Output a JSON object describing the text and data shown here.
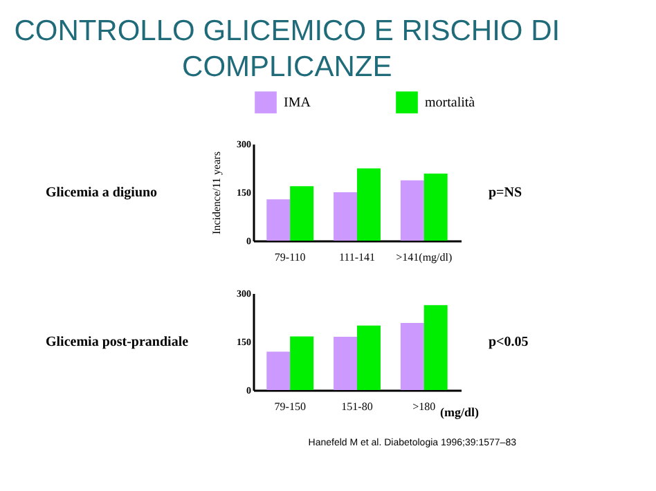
{
  "chart_data": [
    {
      "type": "bar",
      "title": "CONTROLLO GLICEMICO E RISCHIO DI COMPLICANZE",
      "ylabel": "Incidence/11 years",
      "categories": [
        "79-110",
        "111-141",
        ">141(mg/dl)"
      ],
      "series": [
        {
          "name": "IMA",
          "color": "#cc99ff",
          "values": [
            128,
            150,
            187
          ]
        },
        {
          "name": "mortalità",
          "color": "#00ee00",
          "values": [
            169,
            224,
            208
          ]
        }
      ],
      "ylim": [
        0,
        300
      ],
      "yticks": [
        0,
        150,
        300
      ],
      "grid": false,
      "legend": "top",
      "annotations": [
        "Glicemia a digiuno",
        "p=NS"
      ]
    },
    {
      "type": "bar",
      "categories": [
        "79-150",
        "151-80",
        ">180"
      ],
      "series": [
        {
          "name": "IMA",
          "color": "#cc99ff",
          "values": [
            119,
            165,
            208
          ]
        },
        {
          "name": "mortalità",
          "color": "#00ee00",
          "values": [
            166,
            200,
            263
          ]
        }
      ],
      "ylim": [
        0,
        300
      ],
      "yticks": [
        0,
        150,
        300
      ],
      "grid": false,
      "annotations": [
        "Glicemia post-prandiale",
        "p<0.05",
        "(mg/dl)",
        "Hanefeld M et al. Diabetologia 1996;39:1577–83"
      ]
    }
  ]
}
